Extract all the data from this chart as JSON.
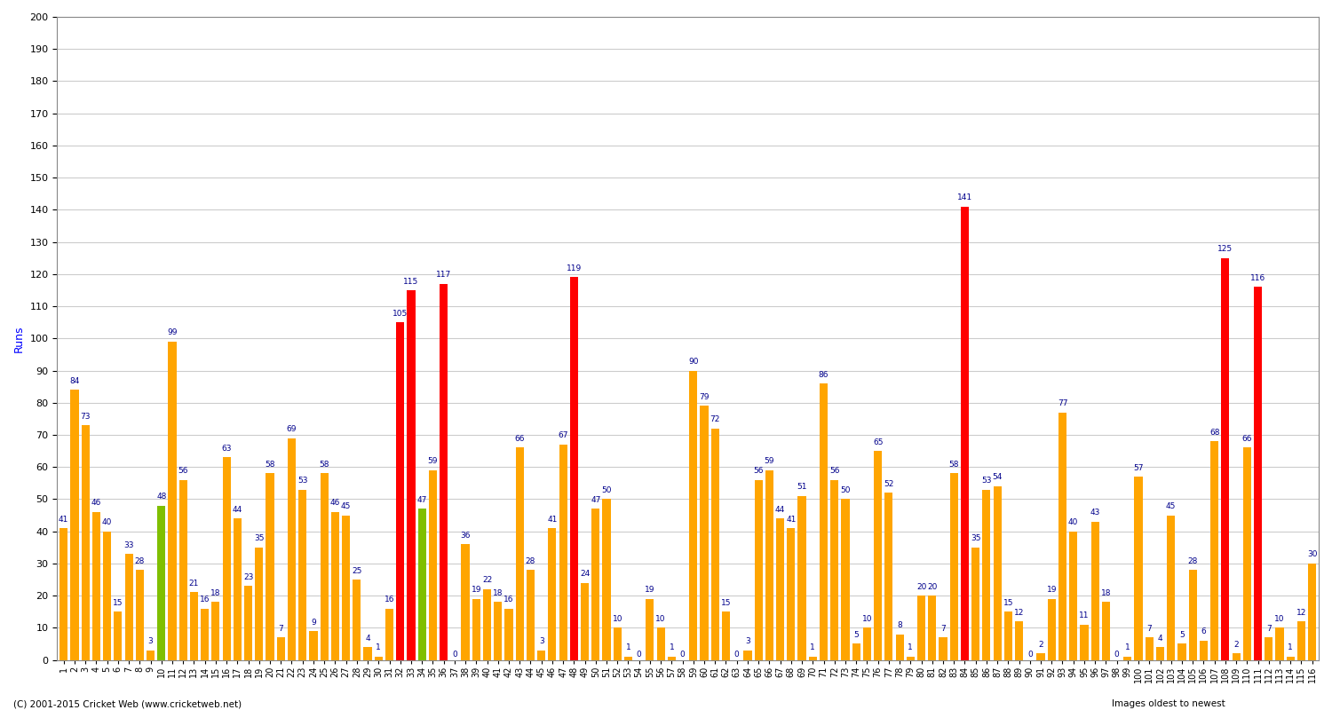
{
  "ylabel": "Runs",
  "footer": "(C) 2001-2015 Cricket Web (www.cricketweb.net)",
  "footer_right": "Images oldest to newest",
  "ylim": [
    0,
    200
  ],
  "yticks": [
    0,
    10,
    20,
    30,
    40,
    50,
    60,
    70,
    80,
    90,
    100,
    110,
    120,
    130,
    140,
    150,
    160,
    170,
    180,
    190,
    200
  ],
  "innings": [
    {
      "n": "1",
      "val": 41,
      "not_out": false,
      "century": false
    },
    {
      "n": "2",
      "val": 84,
      "not_out": false,
      "century": false
    },
    {
      "n": "3",
      "val": 73,
      "not_out": false,
      "century": false
    },
    {
      "n": "4",
      "val": 46,
      "not_out": false,
      "century": false
    },
    {
      "n": "5",
      "val": 40,
      "not_out": false,
      "century": false
    },
    {
      "n": "6",
      "val": 15,
      "not_out": false,
      "century": false
    },
    {
      "n": "7",
      "val": 33,
      "not_out": false,
      "century": false
    },
    {
      "n": "8",
      "val": 28,
      "not_out": false,
      "century": false
    },
    {
      "n": "9",
      "val": 3,
      "not_out": false,
      "century": false
    },
    {
      "n": "10",
      "val": 48,
      "not_out": true,
      "century": false
    },
    {
      "n": "11",
      "val": 99,
      "not_out": false,
      "century": false
    },
    {
      "n": "12",
      "val": 56,
      "not_out": false,
      "century": false
    },
    {
      "n": "13",
      "val": 21,
      "not_out": false,
      "century": false
    },
    {
      "n": "14",
      "val": 16,
      "not_out": false,
      "century": false
    },
    {
      "n": "15",
      "val": 18,
      "not_out": false,
      "century": false
    },
    {
      "n": "16",
      "val": 63,
      "not_out": false,
      "century": false
    },
    {
      "n": "17",
      "val": 44,
      "not_out": false,
      "century": false
    },
    {
      "n": "18",
      "val": 23,
      "not_out": false,
      "century": false
    },
    {
      "n": "19",
      "val": 35,
      "not_out": false,
      "century": false
    },
    {
      "n": "20",
      "val": 58,
      "not_out": false,
      "century": false
    },
    {
      "n": "21",
      "val": 7,
      "not_out": false,
      "century": false
    },
    {
      "n": "22",
      "val": 69,
      "not_out": false,
      "century": false
    },
    {
      "n": "23",
      "val": 53,
      "not_out": false,
      "century": false
    },
    {
      "n": "24",
      "val": 9,
      "not_out": false,
      "century": false
    },
    {
      "n": "25",
      "val": 58,
      "not_out": false,
      "century": false
    },
    {
      "n": "26",
      "val": 46,
      "not_out": false,
      "century": false
    },
    {
      "n": "27",
      "val": 45,
      "not_out": false,
      "century": false
    },
    {
      "n": "28",
      "val": 25,
      "not_out": false,
      "century": false
    },
    {
      "n": "29",
      "val": 4,
      "not_out": false,
      "century": false
    },
    {
      "n": "30",
      "val": 1,
      "not_out": false,
      "century": false
    },
    {
      "n": "31",
      "val": 16,
      "not_out": false,
      "century": false
    },
    {
      "n": "32",
      "val": 105,
      "not_out": false,
      "century": true
    },
    {
      "n": "33",
      "val": 115,
      "not_out": false,
      "century": true
    },
    {
      "n": "34",
      "val": 47,
      "not_out": true,
      "century": false
    },
    {
      "n": "35",
      "val": 59,
      "not_out": false,
      "century": false
    },
    {
      "n": "36",
      "val": 117,
      "not_out": false,
      "century": true
    },
    {
      "n": "37",
      "val": 0,
      "not_out": false,
      "century": false
    },
    {
      "n": "38",
      "val": 36,
      "not_out": false,
      "century": false
    },
    {
      "n": "39",
      "val": 19,
      "not_out": false,
      "century": false
    },
    {
      "n": "40",
      "val": 22,
      "not_out": false,
      "century": false
    },
    {
      "n": "41",
      "val": 18,
      "not_out": false,
      "century": false
    },
    {
      "n": "42",
      "val": 16,
      "not_out": false,
      "century": false
    },
    {
      "n": "43",
      "val": 66,
      "not_out": false,
      "century": false
    },
    {
      "n": "44",
      "val": 28,
      "not_out": false,
      "century": false
    },
    {
      "n": "45",
      "val": 3,
      "not_out": false,
      "century": false
    },
    {
      "n": "46",
      "val": 41,
      "not_out": false,
      "century": false
    },
    {
      "n": "47",
      "val": 67,
      "not_out": false,
      "century": false
    },
    {
      "n": "48",
      "val": 119,
      "not_out": false,
      "century": true
    },
    {
      "n": "49",
      "val": 24,
      "not_out": false,
      "century": false
    },
    {
      "n": "50",
      "val": 47,
      "not_out": false,
      "century": false
    },
    {
      "n": "51",
      "val": 50,
      "not_out": false,
      "century": false
    },
    {
      "n": "52",
      "val": 10,
      "not_out": false,
      "century": false
    },
    {
      "n": "53",
      "val": 1,
      "not_out": false,
      "century": false
    },
    {
      "n": "54",
      "val": 0,
      "not_out": false,
      "century": false
    },
    {
      "n": "55",
      "val": 19,
      "not_out": false,
      "century": false
    },
    {
      "n": "56",
      "val": 10,
      "not_out": false,
      "century": false
    },
    {
      "n": "57",
      "val": 1,
      "not_out": false,
      "century": false
    },
    {
      "n": "58",
      "val": 0,
      "not_out": false,
      "century": false
    },
    {
      "n": "59",
      "val": 90,
      "not_out": false,
      "century": false
    },
    {
      "n": "60",
      "val": 79,
      "not_out": false,
      "century": false
    },
    {
      "n": "61",
      "val": 72,
      "not_out": false,
      "century": false
    },
    {
      "n": "62",
      "val": 15,
      "not_out": false,
      "century": false
    },
    {
      "n": "63",
      "val": 0,
      "not_out": false,
      "century": false
    },
    {
      "n": "64",
      "val": 3,
      "not_out": false,
      "century": false
    },
    {
      "n": "65",
      "val": 56,
      "not_out": false,
      "century": false
    },
    {
      "n": "66",
      "val": 59,
      "not_out": false,
      "century": false
    },
    {
      "n": "67",
      "val": 44,
      "not_out": false,
      "century": false
    },
    {
      "n": "68",
      "val": 41,
      "not_out": false,
      "century": false
    },
    {
      "n": "69",
      "val": 51,
      "not_out": false,
      "century": false
    },
    {
      "n": "70",
      "val": 1,
      "not_out": false,
      "century": false
    },
    {
      "n": "71",
      "val": 86,
      "not_out": false,
      "century": false
    },
    {
      "n": "72",
      "val": 56,
      "not_out": false,
      "century": false
    },
    {
      "n": "73",
      "val": 50,
      "not_out": false,
      "century": false
    },
    {
      "n": "74",
      "val": 5,
      "not_out": false,
      "century": false
    },
    {
      "n": "75",
      "val": 10,
      "not_out": false,
      "century": false
    },
    {
      "n": "76",
      "val": 65,
      "not_out": false,
      "century": false
    },
    {
      "n": "77",
      "val": 52,
      "not_out": false,
      "century": false
    },
    {
      "n": "78",
      "val": 8,
      "not_out": false,
      "century": false
    },
    {
      "n": "79",
      "val": 1,
      "not_out": false,
      "century": false
    },
    {
      "n": "80",
      "val": 20,
      "not_out": false,
      "century": false
    },
    {
      "n": "81",
      "val": 20,
      "not_out": false,
      "century": false
    },
    {
      "n": "82",
      "val": 7,
      "not_out": false,
      "century": false
    },
    {
      "n": "83",
      "val": 58,
      "not_out": false,
      "century": false
    },
    {
      "n": "84",
      "val": 141,
      "not_out": false,
      "century": true
    },
    {
      "n": "85",
      "val": 35,
      "not_out": false,
      "century": false
    },
    {
      "n": "86",
      "val": 53,
      "not_out": false,
      "century": false
    },
    {
      "n": "87",
      "val": 54,
      "not_out": false,
      "century": false
    },
    {
      "n": "88",
      "val": 15,
      "not_out": false,
      "century": false
    },
    {
      "n": "89",
      "val": 12,
      "not_out": false,
      "century": false
    },
    {
      "n": "90",
      "val": 0,
      "not_out": false,
      "century": false
    },
    {
      "n": "91",
      "val": 2,
      "not_out": false,
      "century": false
    },
    {
      "n": "92",
      "val": 19,
      "not_out": false,
      "century": false
    },
    {
      "n": "93",
      "val": 77,
      "not_out": false,
      "century": false
    },
    {
      "n": "94",
      "val": 40,
      "not_out": false,
      "century": false
    },
    {
      "n": "95",
      "val": 11,
      "not_out": false,
      "century": false
    },
    {
      "n": "96",
      "val": 43,
      "not_out": false,
      "century": false
    },
    {
      "n": "97",
      "val": 18,
      "not_out": false,
      "century": false
    },
    {
      "n": "98",
      "val": 0,
      "not_out": false,
      "century": false
    },
    {
      "n": "99",
      "val": 1,
      "not_out": false,
      "century": false
    },
    {
      "n": "100",
      "val": 57,
      "not_out": false,
      "century": false
    },
    {
      "n": "101",
      "val": 7,
      "not_out": false,
      "century": false
    },
    {
      "n": "102",
      "val": 4,
      "not_out": false,
      "century": false
    },
    {
      "n": "103",
      "val": 45,
      "not_out": false,
      "century": false
    },
    {
      "n": "104",
      "val": 5,
      "not_out": false,
      "century": false
    },
    {
      "n": "105",
      "val": 28,
      "not_out": false,
      "century": false
    },
    {
      "n": "106",
      "val": 6,
      "not_out": false,
      "century": false
    },
    {
      "n": "107",
      "val": 68,
      "not_out": false,
      "century": false
    },
    {
      "n": "108",
      "val": 125,
      "not_out": false,
      "century": true
    },
    {
      "n": "109",
      "val": 2,
      "not_out": false,
      "century": false
    },
    {
      "n": "110",
      "val": 66,
      "not_out": false,
      "century": false
    },
    {
      "n": "111",
      "val": 116,
      "not_out": false,
      "century": true
    },
    {
      "n": "112",
      "val": 7,
      "not_out": false,
      "century": false
    },
    {
      "n": "113",
      "val": 10,
      "not_out": false,
      "century": false
    },
    {
      "n": "114",
      "val": 1,
      "not_out": false,
      "century": false
    },
    {
      "n": "115",
      "val": 12,
      "not_out": false,
      "century": false
    },
    {
      "n": "116",
      "val": 30,
      "not_out": false,
      "century": false
    }
  ],
  "colors": {
    "orange": "#FFA500",
    "green": "#7FBF00",
    "red": "#FF0000",
    "bg": "#FFFFFF",
    "grid": "#CCCCCC"
  }
}
